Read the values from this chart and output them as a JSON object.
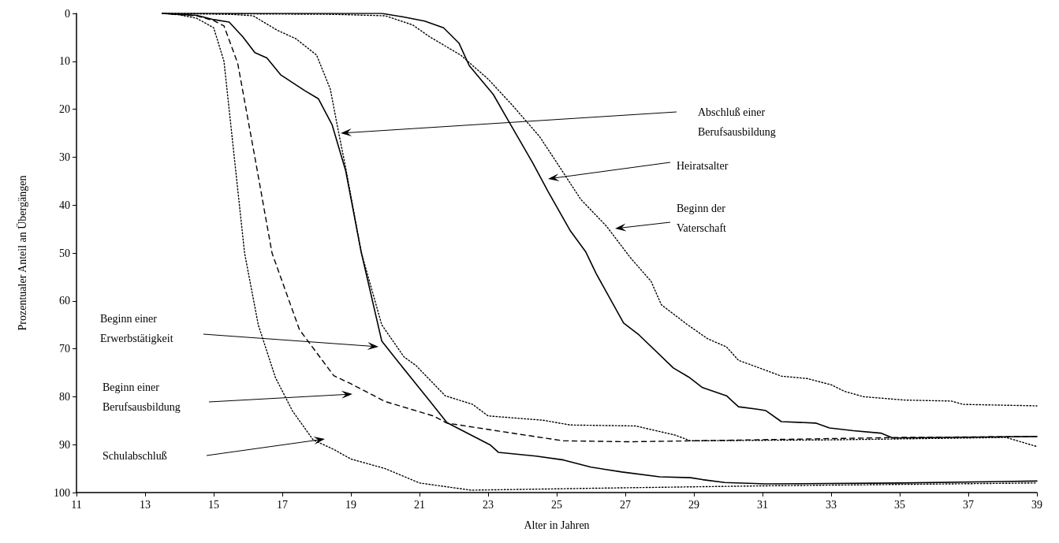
{
  "chart_data": {
    "type": "line",
    "xlabel": "Alter in Jahren",
    "ylabel": "Prozentualer Anteil an Übergängen",
    "xlim": [
      11,
      39
    ],
    "xticks": [
      11,
      13,
      15,
      17,
      19,
      21,
      23,
      25,
      27,
      29,
      31,
      33,
      35,
      37,
      39
    ],
    "ylim": [
      100,
      0
    ],
    "yticks": [
      0,
      10,
      20,
      30,
      40,
      50,
      60,
      70,
      80,
      90,
      100
    ],
    "grid": false,
    "marker": "none",
    "series": [
      {
        "color": "#000000",
        "line_style": "dotted",
        "x": [
          13.5,
          14,
          14.5,
          15,
          15.3,
          15.6,
          15.9,
          16.3,
          16.8,
          17.3,
          17.9,
          18.5,
          19,
          20,
          21,
          22,
          22.5,
          27,
          31,
          39
        ],
        "values": [
          0,
          0.3,
          1,
          3,
          10,
          30,
          50,
          65,
          76,
          83,
          89,
          91,
          93,
          95,
          98,
          99,
          99.5,
          99,
          98.6,
          98
        ]
      },
      {
        "color": "#000000",
        "line_style": "dashed",
        "x": [
          13.5,
          14.5,
          15,
          15.3,
          15.7,
          16.2,
          16.7,
          17.5,
          18.5,
          19,
          20,
          21.4,
          21.8,
          23.8,
          25.2,
          27.1,
          29,
          35,
          39
        ],
        "values": [
          0,
          0.5,
          1.5,
          2.6,
          10.4,
          30,
          50,
          66,
          75.6,
          77.3,
          81,
          84,
          85.5,
          87.7,
          89.2,
          89.4,
          89.2,
          88.5,
          88.3
        ]
      },
      {
        "color": "#000000",
        "line_style": "solid",
        "x": [
          13.5,
          14.5,
          15,
          15.45,
          15.85,
          16.2,
          16.55,
          16.95,
          17.65,
          18.05,
          18.45,
          18.85,
          19.3,
          19.9,
          20.4,
          20.77,
          21.2,
          21.8,
          23.07,
          23.3,
          24.4,
          25.2,
          26,
          26.9,
          28,
          28.9,
          29.25,
          29.9,
          31.1,
          35,
          39
        ],
        "values": [
          0,
          0.4,
          1.3,
          1.8,
          4.9,
          8.2,
          9.3,
          12.8,
          16.1,
          17.8,
          23.2,
          32.9,
          49.8,
          68.4,
          72.9,
          76.2,
          80,
          85.4,
          90.1,
          91.6,
          92.4,
          93.2,
          94.7,
          95.7,
          96.7,
          96.9,
          97.3,
          97.9,
          98.2,
          98,
          97.6
        ]
      },
      {
        "color": "#000000",
        "line_style": "dotted",
        "x": [
          13.5,
          15.5,
          16.15,
          16.85,
          17.4,
          18,
          18.4,
          18.6,
          18.85,
          19.3,
          19.9,
          20.55,
          20.9,
          21.75,
          22.55,
          23,
          24.6,
          25.4,
          27.3,
          28.45,
          28.9,
          33,
          38.1,
          39
        ],
        "values": [
          0,
          0.2,
          0.5,
          3.5,
          5.3,
          8.7,
          15.8,
          23.3,
          32.3,
          49.8,
          65,
          71.7,
          73.5,
          79.8,
          81.6,
          84,
          84.9,
          85.9,
          86.1,
          88,
          89.2,
          89,
          88.5,
          90.4
        ]
      },
      {
        "color": "#000000",
        "line_style": "solid",
        "x": [
          13.5,
          19.9,
          20.5,
          21.15,
          21.7,
          22.15,
          22.45,
          23.15,
          23.55,
          24.3,
          24.75,
          25.4,
          25.85,
          26.15,
          26.95,
          27.4,
          28.4,
          28.85,
          29.25,
          29.95,
          30.3,
          30.85,
          31.1,
          31.55,
          32.55,
          32.95,
          33.65,
          34.45,
          34.8,
          39
        ],
        "values": [
          0,
          0,
          0.7,
          1.6,
          3,
          6.2,
          10.9,
          16.9,
          21.9,
          31.2,
          37.2,
          45.4,
          49.8,
          54.3,
          64.6,
          67.1,
          74,
          75.9,
          78.1,
          79.8,
          82.1,
          82.6,
          82.9,
          85.2,
          85.5,
          86.5,
          87.1,
          87.6,
          88.6,
          88.3
        ]
      },
      {
        "color": "#000000",
        "line_style": "dotted",
        "x": [
          13.5,
          18.5,
          20,
          20.8,
          21.3,
          22.2,
          23,
          23.7,
          24.5,
          25.1,
          25.7,
          26.45,
          27.15,
          27.75,
          28.05,
          28.8,
          29.4,
          29.95,
          30.3,
          31.1,
          31.55,
          32.3,
          33,
          33.4,
          33.95,
          35.15,
          36.5,
          36.85,
          39
        ],
        "values": [
          0,
          0.2,
          0.5,
          2.4,
          4.9,
          8.7,
          13.7,
          19.1,
          25.7,
          32.2,
          38.8,
          44.4,
          51,
          55.9,
          60.8,
          64.9,
          67.9,
          69.6,
          72.4,
          74.5,
          75.7,
          76.2,
          77.5,
          78.9,
          80,
          80.7,
          80.9,
          81.6,
          81.9
        ]
      }
    ],
    "annotations": [
      "Abschluß einer Berufsausbildung",
      "Heiratsalter",
      "Beginn der Vaterschaft",
      "Beginn einer Erwerbstätigkeit",
      "Beginn einer Berufsausbildung",
      "Schulabschluß"
    ]
  }
}
